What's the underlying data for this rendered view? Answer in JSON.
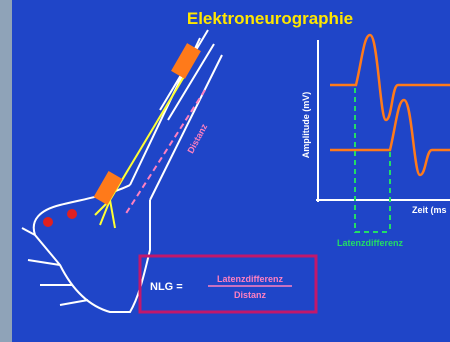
{
  "title": "Elektroneurographie",
  "arm": {
    "distance_label": "Distanz"
  },
  "graph": {
    "y_axis_label": "Amplitude (mV)",
    "x_axis_label": "Zeit (ms",
    "latency_label": "Latenzdifferenz"
  },
  "formula": {
    "lhs": "NLG =",
    "numerator": "Latenzdifferenz",
    "denominator": "Distanz"
  }
}
